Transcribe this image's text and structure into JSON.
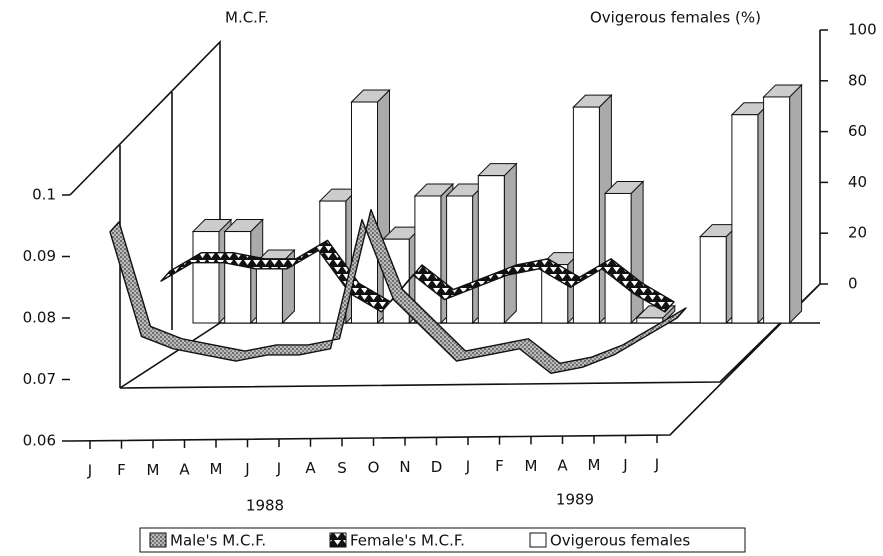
{
  "chart_data": {
    "type": "bar3d",
    "ylabel": "M.C.F.",
    "y2label": "Ovigerous females (%)",
    "categories": [
      "J",
      "F",
      "M",
      "A",
      "M",
      "J",
      "J",
      "A",
      "S",
      "O",
      "N",
      "D",
      "J",
      "F",
      "M",
      "A",
      "M",
      "J",
      "J"
    ],
    "annotations": [
      "1988",
      "1989"
    ],
    "ylim": [
      0.06,
      0.1
    ],
    "yticks": [
      0.06,
      0.07,
      0.08,
      0.09,
      0.1
    ],
    "y2lim": [
      0,
      100
    ],
    "y2ticks": [
      0,
      20,
      40,
      60,
      80,
      100
    ],
    "series": [
      {
        "name": "Male's M.C.F.",
        "kind": "ribbon",
        "color": "#999999",
        "values": [
          0.094,
          0.077,
          0.075,
          0.074,
          0.073,
          0.074,
          0.074,
          0.075,
          0.096,
          0.083,
          0.078,
          0.073,
          0.074,
          0.075,
          0.071,
          0.072,
          0.074,
          0.077,
          0.08
        ]
      },
      {
        "name": "Female's M.C.F.",
        "kind": "ribbon",
        "color": "#111111",
        "values": [
          null,
          null,
          0.086,
          0.089,
          0.089,
          0.088,
          0.088,
          0.091,
          0.084,
          0.081,
          0.087,
          0.083,
          0.085,
          0.087,
          0.088,
          0.085,
          0.088,
          0.084,
          0.081
        ]
      },
      {
        "name": "Ovigerous females",
        "kind": "bar",
        "axis": "y2",
        "color": "#ffffff",
        "values": [
          36,
          36,
          24,
          null,
          48,
          87,
          33,
          50,
          50,
          58,
          null,
          23,
          85,
          51,
          2,
          null,
          34,
          82,
          89
        ]
      }
    ]
  }
}
